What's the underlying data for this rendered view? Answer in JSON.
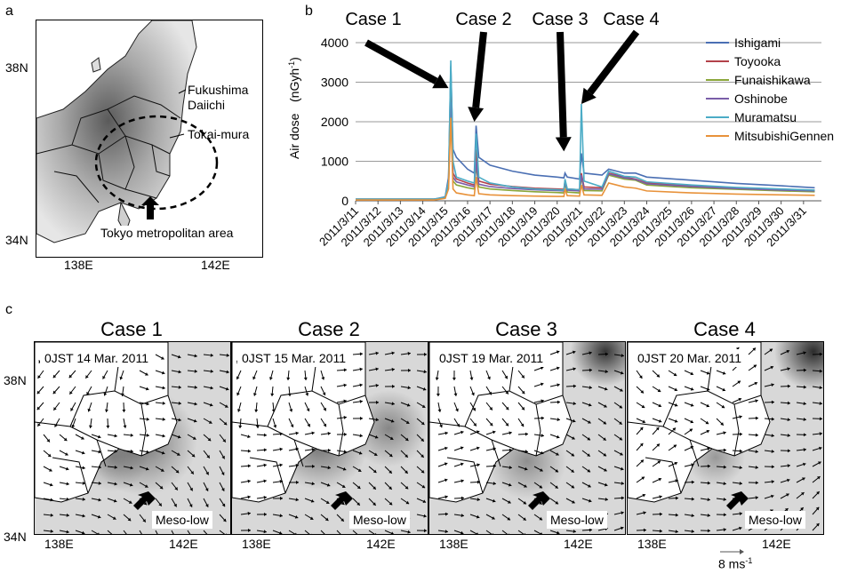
{
  "panel_a": {
    "label": "a",
    "lat_labels": [
      "38N",
      "34N"
    ],
    "lon_labels": [
      "138E",
      "142E"
    ],
    "fukushima": [
      "Fukushima",
      "Daiichi"
    ],
    "tokai": "Tokai-mura",
    "tokyo": "Tokyo metropolitan area"
  },
  "panel_b": {
    "label": "b"
  },
  "panel_c": {
    "label": "c",
    "lat_labels": [
      "38N",
      "34N"
    ],
    "lon_labels": [
      "138E",
      "142E"
    ],
    "scale_label": "8 ms",
    "scale_sup": "-1",
    "cases": [
      {
        "title": "Case 1",
        "date": "0JST 14 Mar. 2011",
        "meso": "Meso-low"
      },
      {
        "title": "Case 2",
        "date": "0JST 15 Mar. 2011",
        "meso": "Meso-low"
      },
      {
        "title": "Case 3",
        "date": "0JST 19 Mar. 2011",
        "meso": "Meso-low"
      },
      {
        "title": "Case 4",
        "date": "0JST 20 Mar. 2011",
        "meso": "Meso-low"
      }
    ]
  },
  "chart_data": {
    "type": "line",
    "ylabel": "Air dose",
    "yunit": "(nGyh",
    "yunit_sup": "-1",
    "yunit_close": ")",
    "ylim": [
      0,
      4000
    ],
    "yticks": [
      0,
      1000,
      2000,
      3000,
      4000
    ],
    "grid": true,
    "legend_position": "right",
    "categories": [
      "2011/3/11",
      "2011/3/12",
      "2011/3/13",
      "2011/3/14",
      "2011/3/15",
      "2011/3/16",
      "2011/3/17",
      "2011/3/18",
      "2011/3/19",
      "2011/3/20",
      "2011/3/21",
      "2011/3/22",
      "2011/3/23",
      "2011/3/24",
      "2011/3/25",
      "2011/3/26",
      "2011/3/27",
      "2011/3/28",
      "2011/3/29",
      "2011/3/30",
      "2011/3/31"
    ],
    "annotations": [
      {
        "text": "Case 1",
        "day": 15.1
      },
      {
        "text": "Case 2",
        "day": 16.3
      },
      {
        "text": "Case 3",
        "day": 20.3
      },
      {
        "text": "Case 4",
        "day": 21.1
      }
    ],
    "series": [
      {
        "name": "Ishigami",
        "color": "#4a6fb3",
        "points": [
          [
            11,
            40
          ],
          [
            12.5,
            40
          ],
          [
            13.5,
            40
          ],
          [
            14.5,
            40
          ],
          [
            15.0,
            100
          ],
          [
            15.15,
            600
          ],
          [
            15.25,
            3400
          ],
          [
            15.35,
            1300
          ],
          [
            15.5,
            1100
          ],
          [
            16.0,
            800
          ],
          [
            16.3,
            700
          ],
          [
            16.38,
            1900
          ],
          [
            16.5,
            1100
          ],
          [
            17,
            900
          ],
          [
            18,
            750
          ],
          [
            19,
            650
          ],
          [
            20,
            600
          ],
          [
            20.3,
            580
          ],
          [
            20.35,
            700
          ],
          [
            20.45,
            600
          ],
          [
            21.0,
            550
          ],
          [
            21.08,
            1200
          ],
          [
            21.2,
            700
          ],
          [
            22,
            650
          ],
          [
            22.3,
            800
          ],
          [
            23,
            700
          ],
          [
            23.5,
            700
          ],
          [
            24,
            600
          ],
          [
            26,
            520
          ],
          [
            28,
            440
          ],
          [
            30,
            380
          ],
          [
            31.5,
            330
          ]
        ]
      },
      {
        "name": "Toyooka",
        "color": "#b3424a",
        "points": [
          [
            11,
            40
          ],
          [
            12.5,
            40
          ],
          [
            13.5,
            40
          ],
          [
            14.5,
            40
          ],
          [
            15.0,
            80
          ],
          [
            15.15,
            500
          ],
          [
            15.25,
            2700
          ],
          [
            15.35,
            700
          ],
          [
            15.5,
            550
          ],
          [
            16.0,
            450
          ],
          [
            16.3,
            400
          ],
          [
            16.38,
            1300
          ],
          [
            16.5,
            500
          ],
          [
            17,
            420
          ],
          [
            18,
            360
          ],
          [
            19,
            320
          ],
          [
            20,
            300
          ],
          [
            20.3,
            290
          ],
          [
            20.35,
            500
          ],
          [
            20.45,
            300
          ],
          [
            21.0,
            280
          ],
          [
            21.08,
            700
          ],
          [
            21.2,
            350
          ],
          [
            22,
            330
          ],
          [
            22.3,
            700
          ],
          [
            23,
            600
          ],
          [
            23.5,
            550
          ],
          [
            24,
            450
          ],
          [
            26,
            380
          ],
          [
            28,
            330
          ],
          [
            30,
            290
          ],
          [
            31.5,
            260
          ]
        ]
      },
      {
        "name": "Funaishikawa",
        "color": "#8aa63a",
        "points": [
          [
            11,
            40
          ],
          [
            12.5,
            40
          ],
          [
            13.5,
            40
          ],
          [
            14.5,
            40
          ],
          [
            15.0,
            70
          ],
          [
            15.15,
            400
          ],
          [
            15.25,
            2300
          ],
          [
            15.35,
            500
          ],
          [
            15.5,
            400
          ],
          [
            16.0,
            330
          ],
          [
            16.3,
            300
          ],
          [
            16.38,
            900
          ],
          [
            16.5,
            350
          ],
          [
            17,
            300
          ],
          [
            18,
            260
          ],
          [
            19,
            230
          ],
          [
            20,
            210
          ],
          [
            20.3,
            200
          ],
          [
            20.35,
            450
          ],
          [
            20.45,
            220
          ],
          [
            21.0,
            200
          ],
          [
            21.08,
            600
          ],
          [
            21.2,
            260
          ],
          [
            22,
            250
          ],
          [
            22.3,
            650
          ],
          [
            23,
            550
          ],
          [
            23.5,
            520
          ],
          [
            24,
            400
          ],
          [
            26,
            330
          ],
          [
            28,
            290
          ],
          [
            30,
            250
          ],
          [
            31.5,
            230
          ]
        ]
      },
      {
        "name": "Oshinobe",
        "color": "#7a5ea8",
        "points": [
          [
            11,
            40
          ],
          [
            12.5,
            40
          ],
          [
            13.5,
            40
          ],
          [
            14.5,
            40
          ],
          [
            15.0,
            70
          ],
          [
            15.15,
            450
          ],
          [
            15.25,
            2500
          ],
          [
            15.35,
            600
          ],
          [
            15.5,
            480
          ],
          [
            16.0,
            400
          ],
          [
            16.3,
            360
          ],
          [
            16.38,
            1000
          ],
          [
            16.5,
            420
          ],
          [
            17,
            360
          ],
          [
            18,
            310
          ],
          [
            19,
            280
          ],
          [
            20,
            260
          ],
          [
            20.3,
            250
          ],
          [
            20.35,
            480
          ],
          [
            20.45,
            270
          ],
          [
            21.0,
            250
          ],
          [
            21.08,
            650
          ],
          [
            21.2,
            300
          ],
          [
            22,
            290
          ],
          [
            22.3,
            680
          ],
          [
            23,
            580
          ],
          [
            23.5,
            540
          ],
          [
            24,
            430
          ],
          [
            26,
            360
          ],
          [
            28,
            310
          ],
          [
            30,
            270
          ],
          [
            31.5,
            250
          ]
        ]
      },
      {
        "name": "Muramatsu",
        "color": "#4bacc6",
        "points": [
          [
            11,
            40
          ],
          [
            12.5,
            40
          ],
          [
            13.5,
            40
          ],
          [
            14.5,
            40
          ],
          [
            15.0,
            90
          ],
          [
            15.15,
            500
          ],
          [
            15.25,
            3550
          ],
          [
            15.35,
            1000
          ],
          [
            15.5,
            600
          ],
          [
            16.0,
            500
          ],
          [
            16.3,
            450
          ],
          [
            16.38,
            1700
          ],
          [
            16.5,
            600
          ],
          [
            17,
            450
          ],
          [
            18,
            350
          ],
          [
            19,
            300
          ],
          [
            20,
            280
          ],
          [
            20.3,
            270
          ],
          [
            20.35,
            550
          ],
          [
            20.45,
            300
          ],
          [
            21.0,
            280
          ],
          [
            21.08,
            2450
          ],
          [
            21.2,
            500
          ],
          [
            22,
            350
          ],
          [
            22.3,
            750
          ],
          [
            23,
            620
          ],
          [
            23.5,
            600
          ],
          [
            24,
            480
          ],
          [
            26,
            400
          ],
          [
            28,
            340
          ],
          [
            30,
            300
          ],
          [
            31.5,
            270
          ]
        ]
      },
      {
        "name": "MitsubishiGennen",
        "color": "#e8923a",
        "points": [
          [
            11,
            20
          ],
          [
            12.5,
            20
          ],
          [
            13.5,
            20
          ],
          [
            14.5,
            20
          ],
          [
            15.0,
            60
          ],
          [
            15.15,
            300
          ],
          [
            15.25,
            2100
          ],
          [
            15.35,
            300
          ],
          [
            15.5,
            200
          ],
          [
            16.0,
            150
          ],
          [
            16.3,
            130
          ],
          [
            16.38,
            600
          ],
          [
            16.5,
            180
          ],
          [
            17,
            150
          ],
          [
            18,
            130
          ],
          [
            19,
            120
          ],
          [
            20,
            110
          ],
          [
            20.3,
            110
          ],
          [
            20.35,
            300
          ],
          [
            20.45,
            130
          ],
          [
            21.0,
            120
          ],
          [
            21.08,
            400
          ],
          [
            21.2,
            150
          ],
          [
            22,
            140
          ],
          [
            22.3,
            450
          ],
          [
            23,
            350
          ],
          [
            23.5,
            320
          ],
          [
            24,
            250
          ],
          [
            26,
            200
          ],
          [
            28,
            170
          ],
          [
            30,
            150
          ],
          [
            31.5,
            140
          ]
        ]
      }
    ]
  }
}
